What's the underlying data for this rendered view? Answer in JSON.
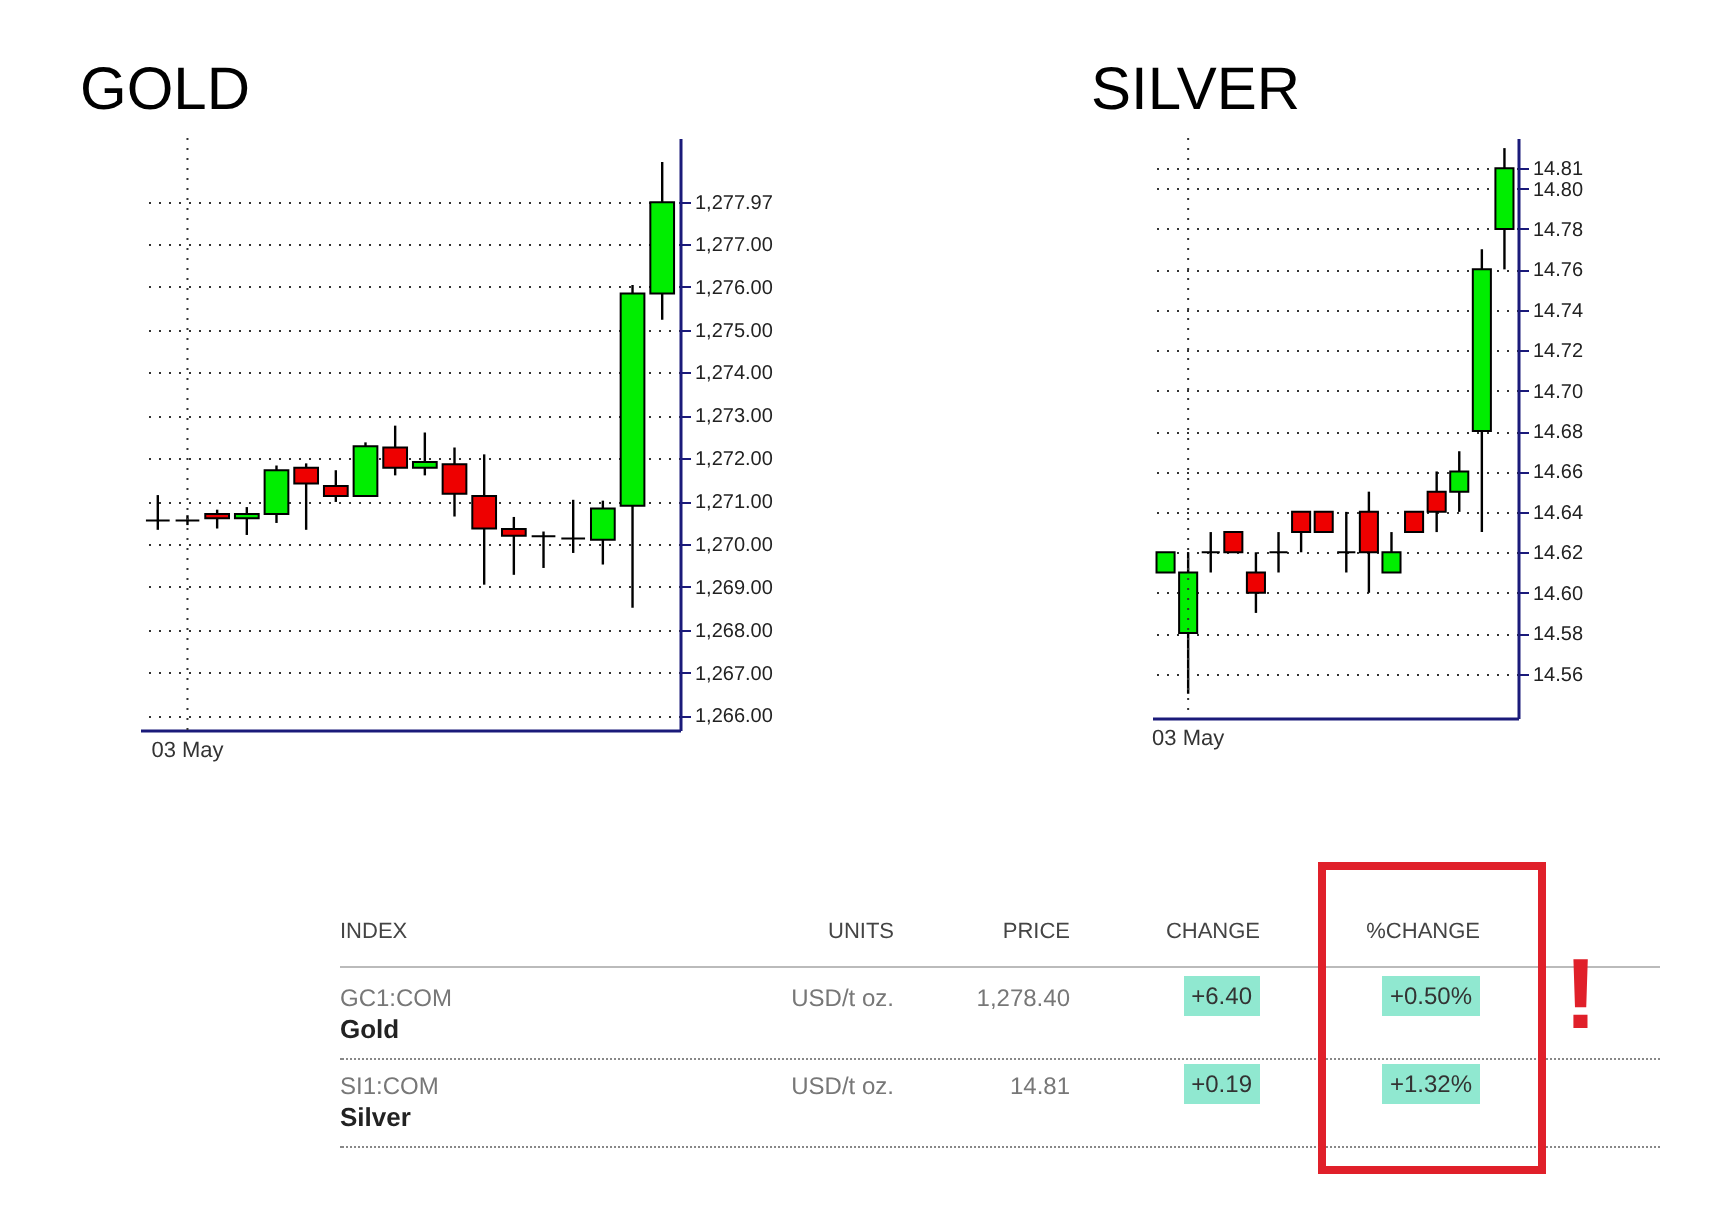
{
  "chart_data": [
    {
      "type": "candlestick",
      "title": "GOLD",
      "categories": [
        null,
        "03 May",
        null,
        null,
        null,
        null,
        null,
        null,
        null,
        null,
        null,
        null,
        null,
        null,
        null,
        null,
        null,
        null
      ],
      "ohlc": [
        [
          1270.55,
          1271.14,
          1270.33,
          1270.55
        ],
        [
          1270.55,
          1270.67,
          1270.44,
          1270.55
        ],
        [
          1270.7,
          1270.8,
          1270.36,
          1270.6
        ],
        [
          1270.6,
          1270.86,
          1270.21,
          1270.7
        ],
        [
          1270.7,
          1271.83,
          1270.49,
          1271.72
        ],
        [
          1271.78,
          1271.88,
          1270.33,
          1271.41
        ],
        [
          1271.35,
          1271.72,
          1270.98,
          1271.12
        ],
        [
          1271.12,
          1272.37,
          1271.12,
          1272.28
        ],
        [
          1272.25,
          1272.76,
          1271.6,
          1271.78
        ],
        [
          1271.78,
          1272.6,
          1271.6,
          1271.91
        ],
        [
          1271.86,
          1272.25,
          1270.64,
          1271.17
        ],
        [
          1271.12,
          1272.09,
          1269.05,
          1270.36
        ],
        [
          1270.35,
          1270.63,
          1269.28,
          1270.19
        ],
        [
          1270.18,
          1270.29,
          1269.44,
          1270.18
        ],
        [
          1270.13,
          1271.03,
          1269.79,
          1270.13
        ],
        [
          1270.1,
          1271.01,
          1269.52,
          1270.83
        ],
        [
          1270.89,
          1276.04,
          1268.51,
          1275.84
        ],
        [
          1275.84,
          1278.91,
          1275.23,
          1277.97
        ]
      ],
      "colors": [
        "#000000",
        "#000000",
        "#ee0000",
        "#00ee00",
        "#00ee00",
        "#ee0000",
        "#ee0000",
        "#00ee00",
        "#ee0000",
        "#00ee00",
        "#ee0000",
        "#ee0000",
        "#ee0000",
        "#000000",
        "#000000",
        "#00ee00",
        "#00ee00",
        "#00ee00"
      ],
      "ylim": [
        1265.66,
        1279.47
      ],
      "yticks": [
        {
          "value": 1266,
          "label": "1,266.00"
        },
        {
          "value": 1267,
          "label": "1,267.00"
        },
        {
          "value": 1268,
          "label": "1,268.00"
        },
        {
          "value": 1269,
          "label": "1,269.00"
        },
        {
          "value": 1270,
          "label": "1,270.00"
        },
        {
          "value": 1271,
          "label": "1,271.00"
        },
        {
          "value": 1272,
          "label": "1,272.00"
        },
        {
          "value": 1273,
          "label": "1,273.00"
        },
        {
          "value": 1274,
          "label": "1,274.00"
        },
        {
          "value": 1275,
          "label": "1,275.00"
        },
        {
          "value": 1276,
          "label": "1,276.00"
        },
        {
          "value": 1277,
          "label": "1,277.00"
        },
        {
          "value": 1277.97,
          "label": "1,277.97"
        }
      ],
      "grid": true
    },
    {
      "type": "candlestick",
      "title": "SILVER",
      "categories": [
        null,
        "03 May",
        null,
        null,
        null,
        null,
        null,
        null,
        null,
        null,
        null,
        null,
        null,
        null,
        null,
        null
      ],
      "ohlc": [
        [
          14.61,
          14.62,
          14.61,
          14.62
        ],
        [
          14.58,
          14.62,
          14.55,
          14.61
        ],
        [
          14.62,
          14.63,
          14.61,
          14.62
        ],
        [
          14.63,
          14.63,
          14.62,
          14.62
        ],
        [
          14.61,
          14.62,
          14.59,
          14.6
        ],
        [
          14.62,
          14.63,
          14.61,
          14.62
        ],
        [
          14.64,
          14.64,
          14.62,
          14.63
        ],
        [
          14.64,
          14.64,
          14.63,
          14.63
        ],
        [
          14.62,
          14.64,
          14.61,
          14.62
        ],
        [
          14.64,
          14.65,
          14.6,
          14.62
        ],
        [
          14.61,
          14.63,
          14.61,
          14.62
        ],
        [
          14.64,
          14.64,
          14.63,
          14.63
        ],
        [
          14.65,
          14.66,
          14.63,
          14.64
        ],
        [
          14.65,
          14.67,
          14.64,
          14.66
        ],
        [
          14.68,
          14.77,
          14.63,
          14.76
        ],
        [
          14.78,
          14.82,
          14.76,
          14.81
        ]
      ],
      "colors": [
        "#00ee00",
        "#00ee00",
        "#000000",
        "#ee0000",
        "#ee0000",
        "#000000",
        "#ee0000",
        "#ee0000",
        "#000000",
        "#ee0000",
        "#00ee00",
        "#ee0000",
        "#ee0000",
        "#00ee00",
        "#00ee00",
        "#00ee00"
      ],
      "ylim": [
        14.538,
        14.825
      ],
      "yticks": [
        {
          "value": 14.56,
          "label": "14.56"
        },
        {
          "value": 14.58,
          "label": "14.58"
        },
        {
          "value": 14.6,
          "label": "14.60"
        },
        {
          "value": 14.62,
          "label": "14.62"
        },
        {
          "value": 14.64,
          "label": "14.64"
        },
        {
          "value": 14.66,
          "label": "14.66"
        },
        {
          "value": 14.68,
          "label": "14.68"
        },
        {
          "value": 14.7,
          "label": "14.70"
        },
        {
          "value": 14.72,
          "label": "14.72"
        },
        {
          "value": 14.74,
          "label": "14.74"
        },
        {
          "value": 14.76,
          "label": "14.76"
        },
        {
          "value": 14.78,
          "label": "14.78"
        },
        {
          "value": 14.8,
          "label": "14.80"
        },
        {
          "value": 14.81,
          "label": "14.81"
        }
      ],
      "grid": true
    },
    {
      "type": "other",
      "annotations": [
        "INDEX",
        "UNITS",
        "PRICE",
        "CHANGE",
        "%CHANGE",
        "GC1:COM",
        "Gold",
        "USD/t oz.",
        "1,278.40",
        "+6.40",
        "+0.50%",
        "SI1:COM",
        "Silver",
        "USD/t oz.",
        "14.81",
        "+0.19",
        "+1.32%",
        "!"
      ]
    }
  ]
}
